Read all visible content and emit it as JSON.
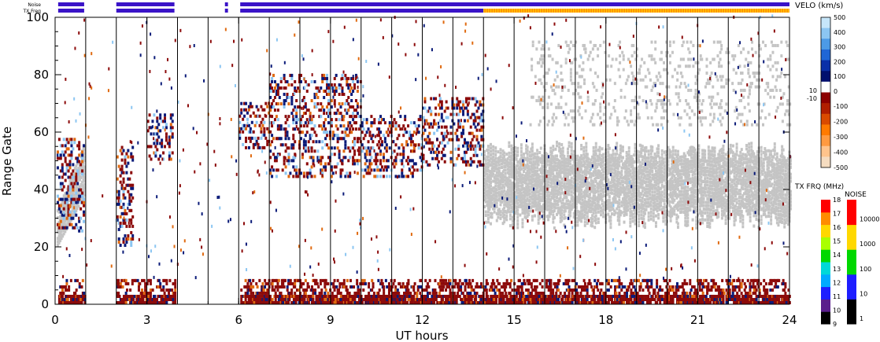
{
  "chart_data": {
    "type": "heatmap",
    "title": "",
    "xlabel": "UT hours",
    "ylabel": "Range Gate",
    "xlim": [
      0,
      24
    ],
    "ylim": [
      0,
      100
    ],
    "x_ticks": [
      "0",
      "3",
      "6",
      "9",
      "12",
      "15",
      "18",
      "21",
      "24"
    ],
    "y_ticks": [
      "0",
      "20",
      "40",
      "60",
      "80",
      "100"
    ],
    "scan_boundaries_ut": [
      1,
      2,
      3,
      4,
      5,
      6,
      7,
      8,
      9,
      10,
      11,
      12,
      13,
      14,
      15,
      16,
      17,
      18,
      19,
      20,
      21,
      22,
      23
    ],
    "status_bars": {
      "noise_label": "Noise",
      "txfreq_label": "TX Freq",
      "color_violet": "#3a13c8",
      "color_orange": "#ff8c00",
      "color_yellow": "#ffe000",
      "segments_ut": [
        [
          0.1,
          0.95
        ],
        [
          2.0,
          3.9
        ],
        [
          5.55,
          5.65
        ],
        [
          6.05,
          24.0
        ]
      ],
      "txfreq_orange_from_ut": 14.0
    },
    "velocity_scale": {
      "title": "VELO (km/s)",
      "ticks_upper": [
        "500",
        "400",
        "300",
        "200",
        "100",
        "0"
      ],
      "ticks_lower": [
        "-100",
        "-200",
        "-300",
        "-400",
        "-500"
      ],
      "zero_band_labels": [
        "10",
        "-10"
      ],
      "colors": [
        "#f5dcc0",
        "#ffc48c",
        "#ff9a40",
        "#ff7a00",
        "#d94a00",
        "#b01e00",
        "#8c0000",
        "#ffffff",
        "#000f6e",
        "#0a2fa8",
        "#1f66d6",
        "#4c9ae6",
        "#8cc6f2",
        "#c6e6fa"
      ]
    },
    "txfreq_scale": {
      "title": "TX FRQ (MHz)",
      "ticks": [
        "9",
        "10",
        "11",
        "12",
        "13",
        "14",
        "15",
        "16",
        "17",
        "18"
      ],
      "colors": [
        "#000000",
        "#5a1e8c",
        "#1e1eff",
        "#00aaff",
        "#00d8d8",
        "#00d800",
        "#aaff00",
        "#ffd800",
        "#ff8c00",
        "#ff0000"
      ]
    },
    "noise_scale": {
      "title": "NOISE",
      "ticks": [
        "1",
        "10",
        "100",
        "1000",
        "10000"
      ],
      "colors": [
        "#000000",
        "#1e1eff",
        "#00d800",
        "#ffd800",
        "#ff0000"
      ]
    },
    "data_colors": {
      "ground_scatter": "#c4c4c4",
      "red": "#8c0a0a",
      "navy": "#0a1a78",
      "orange": "#e06a10",
      "lightblue": "#8cc6f2"
    },
    "ground_scatter_regions": [
      {
        "x": [
          0.05,
          0.95
        ],
        "y": [
          20,
          55
        ],
        "note": "rising band"
      },
      {
        "x": [
          14.0,
          24.0
        ],
        "y": [
          26,
          56
        ],
        "note": "ground scatter band"
      },
      {
        "x": [
          15.5,
          24.0
        ],
        "y": [
          62,
          92
        ],
        "note": "upper patches"
      }
    ],
    "ionospheric_patches": [
      {
        "x": [
          6.0,
          7.0
        ],
        "y": [
          54,
          70
        ]
      },
      {
        "x": [
          7.0,
          10.0
        ],
        "y": [
          44,
          80
        ]
      },
      {
        "x": [
          10.0,
          12.0
        ],
        "y": [
          44,
          66
        ]
      },
      {
        "x": [
          12.0,
          14.0
        ],
        "y": [
          48,
          72
        ]
      },
      {
        "x": [
          0.05,
          0.95
        ],
        "y": [
          25,
          57
        ]
      },
      {
        "x": [
          2.0,
          2.5
        ],
        "y": [
          20,
          55
        ]
      },
      {
        "x": [
          3.0,
          3.8
        ],
        "y": [
          50,
          66
        ]
      }
    ],
    "near_range_band": {
      "segments_ut": [
        [
          0.1,
          0.95
        ],
        [
          2.0,
          3.9
        ],
        [
          6.05,
          24.0
        ]
      ],
      "y": [
        0,
        8
      ]
    }
  }
}
